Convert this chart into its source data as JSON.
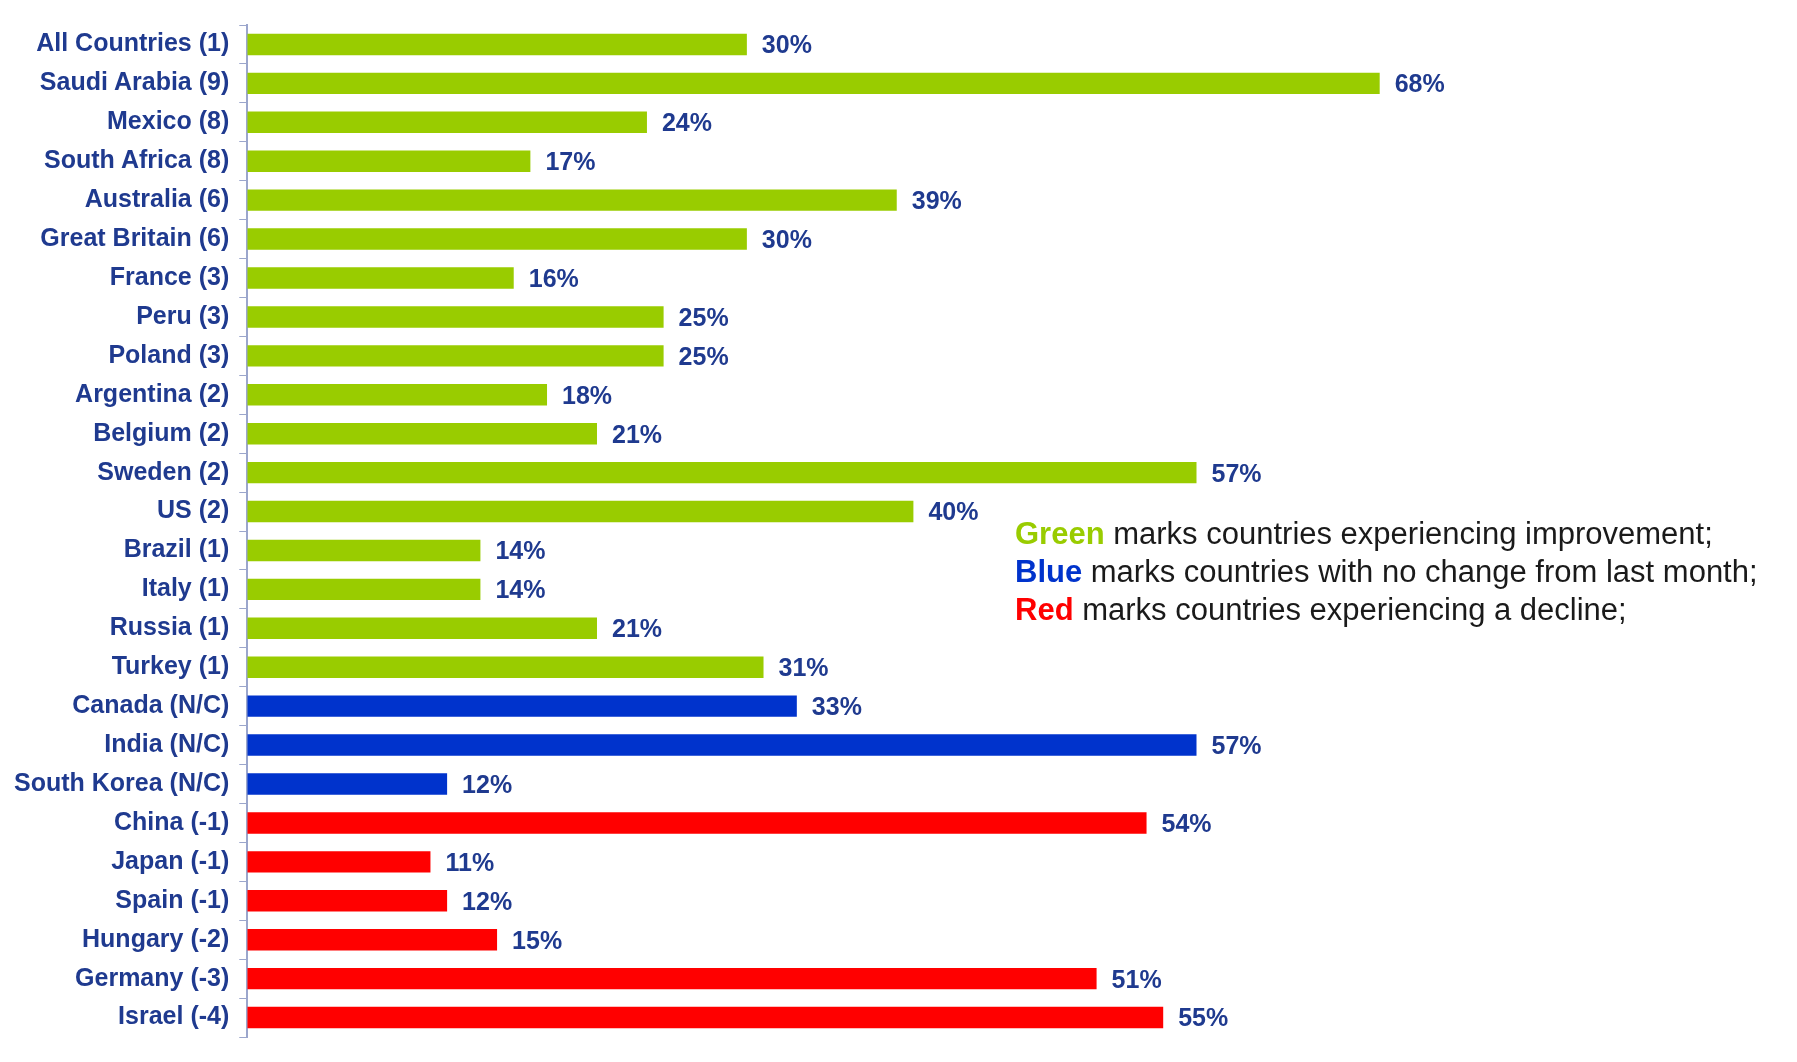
{
  "chart_data": {
    "type": "bar",
    "orientation": "horizontal",
    "categories": [
      "All Countries (1)",
      "Saudi Arabia (9)",
      "Mexico (8)",
      "South Africa (8)",
      "Australia (6)",
      "Great Britain (6)",
      "France (3)",
      "Peru (3)",
      "Poland (3)",
      "Argentina (2)",
      "Belgium (2)",
      "Sweden (2)",
      "US (2)",
      "Brazil (1)",
      "Italy (1)",
      "Russia (1)",
      "Turkey (1)",
      "Canada (N/C)",
      "India (N/C)",
      "South Korea (N/C)",
      "China (-1)",
      "Japan (-1)",
      "Spain (-1)",
      "Hungary (-2)",
      "Germany (-3)",
      "Israel (-4)"
    ],
    "values": [
      30,
      68,
      24,
      17,
      39,
      30,
      16,
      25,
      25,
      18,
      21,
      57,
      40,
      14,
      14,
      21,
      31,
      33,
      57,
      12,
      54,
      11,
      12,
      15,
      51,
      55
    ],
    "value_labels": [
      "30%",
      "68%",
      "24%",
      "17%",
      "39%",
      "30%",
      "16%",
      "25%",
      "25%",
      "18%",
      "21%",
      "57%",
      "40%",
      "14%",
      "14%",
      "21%",
      "31%",
      "33%",
      "57%",
      "12%",
      "54%",
      "11%",
      "12%",
      "15%",
      "51%",
      "55%"
    ],
    "colors": [
      "#99cc00",
      "#99cc00",
      "#99cc00",
      "#99cc00",
      "#99cc00",
      "#99cc00",
      "#99cc00",
      "#99cc00",
      "#99cc00",
      "#99cc00",
      "#99cc00",
      "#99cc00",
      "#99cc00",
      "#99cc00",
      "#99cc00",
      "#99cc00",
      "#99cc00",
      "#0033cc",
      "#0033cc",
      "#0033cc",
      "#ff0000",
      "#ff0000",
      "#ff0000",
      "#ff0000",
      "#ff0000",
      "#ff0000"
    ],
    "annotations": [
      "Green marks countries experiencing improvement;",
      "Blue marks countries with no change from last month;",
      "Red marks countries experiencing a decline;"
    ],
    "grid": false,
    "legend": false
  }
}
